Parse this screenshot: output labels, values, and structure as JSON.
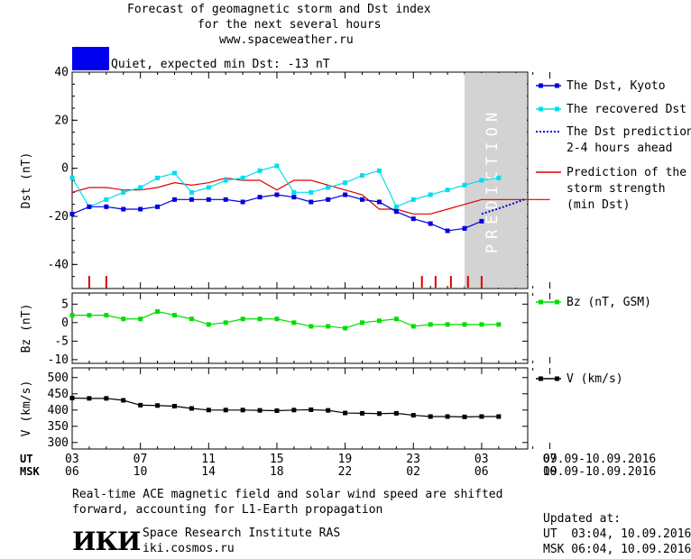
{
  "header": {
    "title_line1": "Forecast of geomagnetic storm and Dst index",
    "title_line2": "for the next several hours",
    "site": "www.spaceweather.ru",
    "status_color": "#0000ee",
    "status_text": "Quiet, expected min Dst: -13 nT"
  },
  "prediction_band_label": "PREDICTION",
  "panel_dst": {
    "ylabel": "Dst (nT)",
    "yticks": [
      "40",
      "20",
      "0",
      "-20",
      "-40"
    ],
    "legend": [
      {
        "label_lines": [
          "The Dst, Kyoto"
        ],
        "color": "#0000dd",
        "style": "line-square"
      },
      {
        "label_lines": [
          "The recovered Dst"
        ],
        "color": "#00ddee",
        "style": "line-square"
      },
      {
        "label_lines": [
          "The Dst prediction",
          "2-4 hours ahead"
        ],
        "color": "#0000dd",
        "style": "dotted"
      },
      {
        "label_lines": [
          "Prediction of the",
          "storm strength",
          "(min Dst)"
        ],
        "color": "#dd0000",
        "style": "line"
      }
    ]
  },
  "panel_bz": {
    "ylabel": "Bz (nT)",
    "yticks": [
      "5",
      "0",
      "-5",
      "-10"
    ],
    "legend": "Bz (nT, GSM)",
    "color": "#00dd00"
  },
  "panel_v": {
    "ylabel": "V (km/s)",
    "yticks": [
      "500",
      "450",
      "400",
      "350",
      "300"
    ],
    "legend": "V (km/s)",
    "color": "#000000"
  },
  "time_axis": {
    "ut_label": "UT",
    "msk_label": "MSK",
    "ut_ticks": [
      "03",
      "07",
      "11",
      "15",
      "19",
      "23",
      "03",
      "07"
    ],
    "msk_ticks": [
      "06",
      "10",
      "14",
      "18",
      "22",
      "02",
      "06",
      "10"
    ],
    "ut_range": "09.09-10.09.2016",
    "msk_range": "09.09-10.09.2016"
  },
  "footer": {
    "note_line1": "Real-time ACE magnetic field and solar wind speed are shifted",
    "note_line2": "forward, accounting for L1-Earth propagation",
    "logo_text": "ИКИ",
    "institute": "Space Research Institute RAS",
    "url": "iki.cosmos.ru",
    "updated_label": "Updated at:",
    "updated_ut": "UT  03:04, 10.09.2016",
    "updated_msk": "MSK 06:04, 10.09.2016"
  },
  "chart_data": {
    "type": "line",
    "x_unit": "hours UT since 03:00 09.09.2016",
    "x_range": [
      0,
      28
    ],
    "prediction_start_hour": 23.0,
    "dst": {
      "ylim": [
        -50,
        40
      ],
      "kyoto": {
        "x": [
          0,
          1,
          2,
          3,
          4,
          5,
          6,
          7,
          8,
          9,
          10,
          11,
          12,
          13,
          14,
          15,
          16,
          17,
          18,
          19,
          20,
          21,
          22,
          23
        ],
        "y": [
          -19,
          -16,
          -16,
          -17,
          -17,
          -16,
          -13,
          -13,
          -13,
          -13,
          -14,
          -12,
          -11,
          -12,
          -14,
          -13,
          -11,
          -13,
          -14,
          -18,
          -21,
          -23,
          -26,
          -25
        ]
      },
      "recovered": {
        "x": [
          0,
          1,
          2,
          3,
          4,
          5,
          6,
          7,
          8,
          9,
          10,
          11,
          12,
          13,
          14,
          15,
          16,
          17,
          18,
          19,
          20,
          21,
          22,
          23,
          24,
          25
        ],
        "y": [
          -4,
          -16,
          -13,
          -10,
          -8,
          -4,
          -2,
          -10,
          -8,
          -5,
          -4,
          -1,
          1,
          -10,
          -10,
          -8,
          -6,
          -3,
          -1,
          -16,
          -13,
          -11,
          -9,
          -7,
          -5,
          -4
        ]
      },
      "kyoto_after": {
        "x": [
          23,
          24
        ],
        "y": [
          -25,
          -22
        ]
      },
      "prediction_dotted": {
        "x": [
          24,
          25.3,
          26.5
        ],
        "y": [
          -19,
          -16,
          -13
        ]
      },
      "storm_strength": {
        "x": [
          0,
          1,
          2,
          3,
          4,
          5,
          6,
          7,
          8,
          9,
          10,
          11,
          12,
          13,
          14,
          15,
          16,
          17,
          18,
          19,
          20,
          21,
          22,
          23,
          24,
          25,
          26,
          27,
          28
        ],
        "y": [
          -10,
          -8,
          -8,
          -9,
          -9,
          -8,
          -6,
          -7,
          -6,
          -4,
          -5,
          -5,
          -9,
          -5,
          -5,
          -7,
          -9,
          -11,
          -17,
          -17,
          -19,
          -19,
          -17,
          -15,
          -13,
          -13,
          -13,
          -13,
          -13
        ]
      },
      "event_markers_x": [
        1,
        2,
        20.5,
        21.3,
        22.2,
        23.2,
        24.0
      ]
    },
    "bz": {
      "ylim": [
        -11,
        8
      ],
      "x": [
        0,
        1,
        2,
        3,
        4,
        5,
        6,
        7,
        8,
        9,
        10,
        11,
        12,
        13,
        14,
        15,
        16,
        17,
        18,
        19,
        20,
        21,
        22,
        23,
        24,
        25
      ],
      "y": [
        2,
        2,
        2,
        1,
        1,
        3,
        2,
        1,
        -0.5,
        0,
        1,
        1,
        1,
        0,
        -1,
        -1,
        -1.5,
        0,
        0.5,
        1,
        -1,
        -0.5,
        -0.5,
        -0.5,
        -0.5,
        -0.5
      ]
    },
    "speed": {
      "ylim": [
        280,
        530
      ],
      "x": [
        0,
        1,
        2,
        3,
        4,
        5,
        6,
        7,
        8,
        9,
        10,
        11,
        12,
        13,
        14,
        15,
        16,
        17,
        18,
        19,
        20,
        21,
        22,
        23,
        24,
        25
      ],
      "y": [
        437,
        436,
        436,
        430,
        415,
        414,
        412,
        405,
        400,
        400,
        400,
        399,
        398,
        400,
        401,
        399,
        391,
        390,
        389,
        390,
        384,
        380,
        380,
        379,
        380,
        380
      ]
    }
  }
}
